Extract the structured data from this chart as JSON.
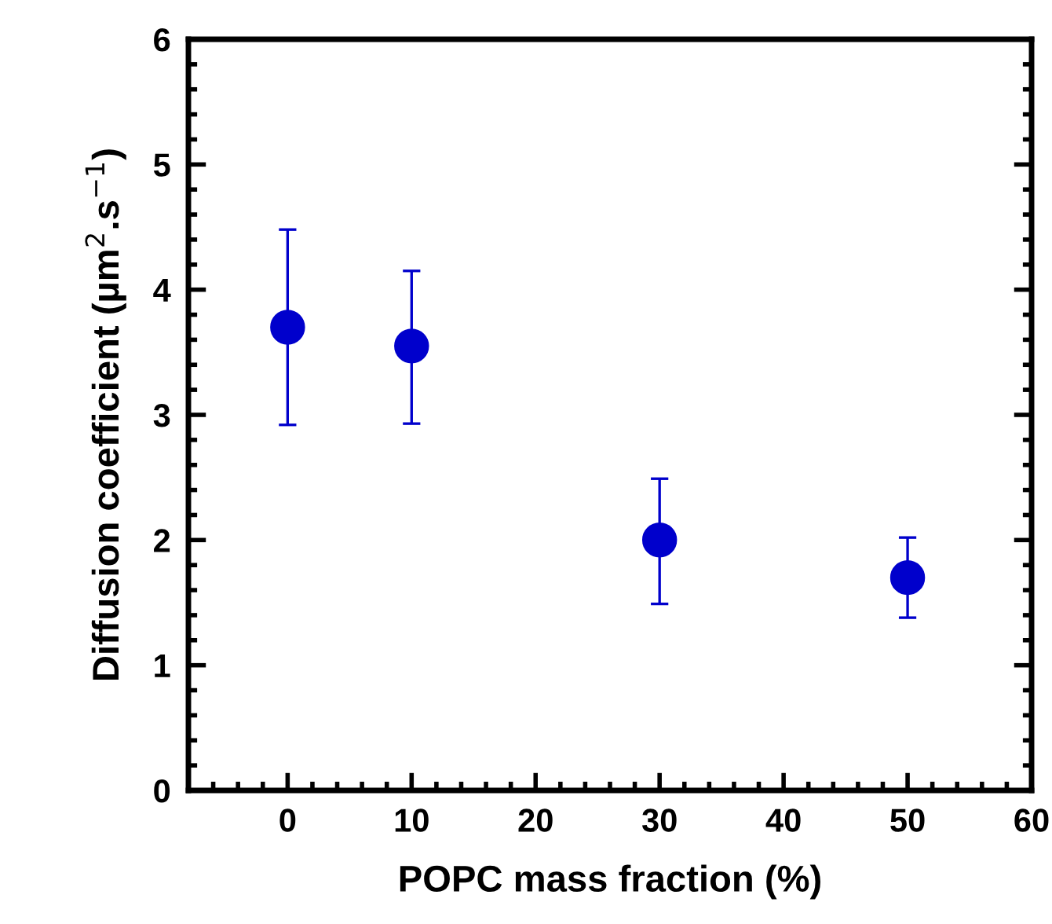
{
  "chart_data": {
    "type": "scatter",
    "xlabel": "POPC mass fraction (%)",
    "ylabel": "Diffusion coefficient (µm$^{2}$.s$^{−1}$)",
    "x": [
      0,
      10,
      30,
      50
    ],
    "series": [
      {
        "color": "#0000cc",
        "values": [
          3.7,
          3.55,
          2.0,
          1.7
        ],
        "errors": [
          [
            2.92,
            4.48
          ],
          [
            2.93,
            4.15
          ],
          [
            1.49,
            2.49
          ],
          [
            1.38,
            2.02
          ]
        ]
      }
    ],
    "xlim": [
      -8,
      60
    ],
    "xticks": [
      0,
      10,
      20,
      30,
      40,
      50,
      60
    ],
    "ylim": [
      0,
      6
    ],
    "yticks": [
      0,
      1,
      2,
      3,
      4,
      5,
      6
    ],
    "marker": "circle",
    "grid": false,
    "legend": false
  }
}
